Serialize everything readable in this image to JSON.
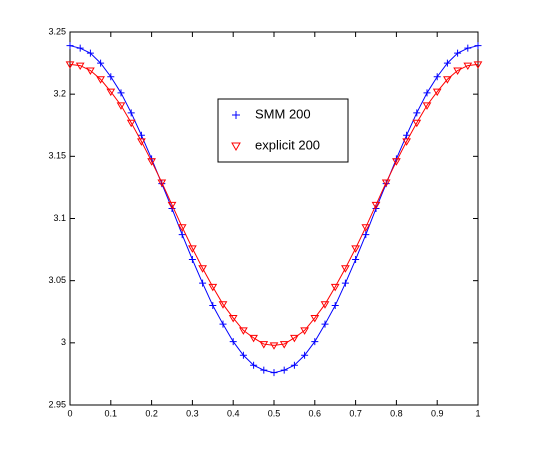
{
  "chart_data": {
    "type": "line",
    "x": [
      0,
      0.025,
      0.05,
      0.075,
      0.1,
      0.125,
      0.15,
      0.175,
      0.2,
      0.225,
      0.25,
      0.275,
      0.3,
      0.325,
      0.35,
      0.375,
      0.4,
      0.425,
      0.45,
      0.475,
      0.5,
      0.525,
      0.55,
      0.575,
      0.6,
      0.625,
      0.65,
      0.675,
      0.7,
      0.725,
      0.75,
      0.775,
      0.8,
      0.825,
      0.85,
      0.875,
      0.9,
      0.925,
      0.95,
      0.975,
      1
    ],
    "series": [
      {
        "name": "SMM 200",
        "color": "#0000ff",
        "marker": "plus",
        "values": [
          3.239,
          3.237,
          3.233,
          3.225,
          3.214,
          3.201,
          3.185,
          3.167,
          3.148,
          3.128,
          3.108,
          3.087,
          3.067,
          3.048,
          3.03,
          3.015,
          3.001,
          2.99,
          2.982,
          2.978,
          2.976,
          2.978,
          2.982,
          2.99,
          3.001,
          3.015,
          3.03,
          3.048,
          3.067,
          3.087,
          3.108,
          3.128,
          3.148,
          3.167,
          3.185,
          3.201,
          3.214,
          3.225,
          3.233,
          3.237,
          3.239
        ]
      },
      {
        "name": "explicit 200",
        "color": "#ff0000",
        "marker": "triangle-down",
        "values": [
          3.224,
          3.223,
          3.219,
          3.212,
          3.202,
          3.191,
          3.177,
          3.162,
          3.146,
          3.129,
          3.111,
          3.093,
          3.076,
          3.06,
          3.045,
          3.031,
          3.02,
          3.01,
          3.004,
          2.999,
          2.998,
          2.999,
          3.004,
          3.01,
          3.02,
          3.031,
          3.045,
          3.06,
          3.076,
          3.093,
          3.111,
          3.129,
          3.146,
          3.162,
          3.177,
          3.191,
          3.202,
          3.212,
          3.219,
          3.223,
          3.224
        ]
      }
    ],
    "xlim": [
      0,
      1
    ],
    "xticks": [
      0,
      0.1,
      0.2,
      0.3,
      0.4,
      0.5,
      0.6,
      0.7,
      0.8,
      0.9,
      1
    ],
    "ylim": [
      2.95,
      3.25
    ],
    "yticks": [
      2.95,
      3,
      3.05,
      3.1,
      3.15,
      3.2,
      3.25
    ],
    "grid": false,
    "legend": "upper center"
  }
}
